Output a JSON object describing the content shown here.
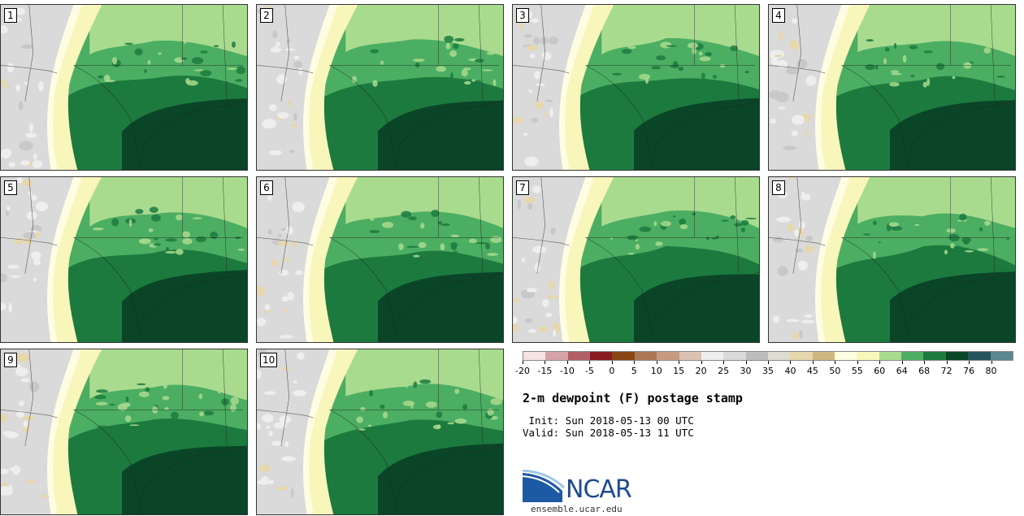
{
  "figure": {
    "title": "2-m dewpoint (F) postage stamp",
    "init": " Init: Sun 2018-05-13 00 UTC",
    "valid": "Valid: Sun 2018-05-13 11 UTC"
  },
  "panels": [
    {
      "label": "1"
    },
    {
      "label": "2"
    },
    {
      "label": "3"
    },
    {
      "label": "4"
    },
    {
      "label": "5"
    },
    {
      "label": "6"
    },
    {
      "label": "7"
    },
    {
      "label": "8"
    },
    {
      "label": "9"
    },
    {
      "label": "10"
    }
  ],
  "colorbar": {
    "colors": [
      "#f6e3e3",
      "#d6a3a8",
      "#b05f66",
      "#8a1b22",
      "#8a4516",
      "#ad7754",
      "#c79b82",
      "#dcc2b2",
      "#eeeeee",
      "#dadada",
      "#bdbdbd",
      "#dedbd2",
      "#e6d7ad",
      "#ceb77f",
      "#fefde3",
      "#f8f6ba",
      "#a9db8f",
      "#4cae62",
      "#1c7a3f",
      "#0b4528",
      "#24545c",
      "#5c8690"
    ],
    "ticks": [
      "-20",
      "-15",
      "-10",
      "-5",
      "0",
      "5",
      "10",
      "15",
      "20",
      "25",
      "30",
      "35",
      "40",
      "45",
      "50",
      "55",
      "60",
      "64",
      "68",
      "72",
      "76",
      "80"
    ]
  },
  "logo": {
    "text": "NCAR",
    "url": "ensemble.ucar.edu"
  }
}
